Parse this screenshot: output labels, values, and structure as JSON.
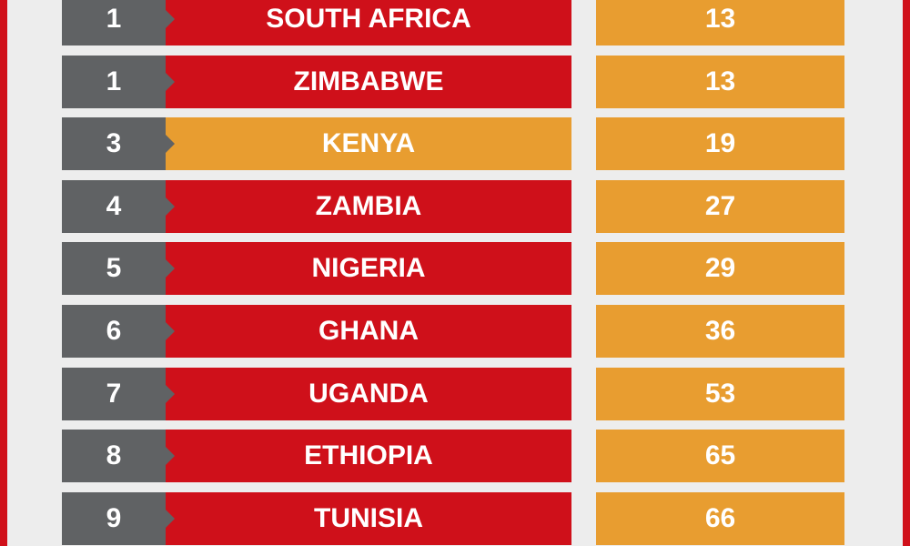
{
  "table": {
    "rows": [
      {
        "rank": 1,
        "country": "SOUTH AFRICA",
        "value": 13
      },
      {
        "rank": 1,
        "country": "ZIMBABWE",
        "value": 13
      },
      {
        "rank": 3,
        "country": "KENYA",
        "value": 19
      },
      {
        "rank": 4,
        "country": "ZAMBIA",
        "value": 27
      },
      {
        "rank": 5,
        "country": "NIGERIA",
        "value": 29
      },
      {
        "rank": 6,
        "country": "GHANA",
        "value": 36
      },
      {
        "rank": 7,
        "country": "UGANDA",
        "value": 53
      },
      {
        "rank": 8,
        "country": "ETHIOPIA",
        "value": 65
      },
      {
        "rank": 9,
        "country": "TUNISIA",
        "value": 66
      }
    ]
  }
}
